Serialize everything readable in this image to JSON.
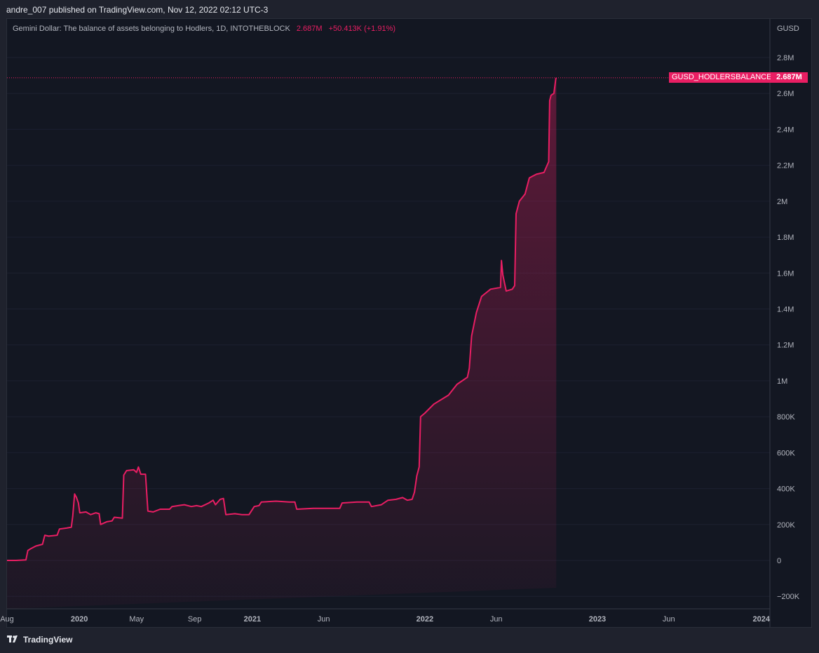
{
  "header": {
    "publisher_line": "andre_007 published on TradingView.com, Nov 12, 2022 02:12 UTC-3"
  },
  "legend": {
    "title": "Gemini Dollar: The balance of assets belonging to Hodlers, 1D, INTOTHEBLOCK",
    "last_value": "2.687M",
    "change": "+50.413K (+1.91%)"
  },
  "axis_currency": "GUSD",
  "last_label": "GUSD_HODLERSBALANCE",
  "last_price_label": "2.687M",
  "footer": {
    "brand": "TradingView"
  },
  "colors": {
    "line": "#e91e63",
    "background": "#131722",
    "axis_text": "#b2b5be"
  },
  "chart_data": {
    "type": "area",
    "title": "Gemini Dollar: The balance of assets belonging to Hodlers, 1D, INTOTHEBLOCK",
    "series": [
      {
        "name": "GUSD_HODLERSBALANCE"
      }
    ],
    "ylim": [
      -200000,
      2800000
    ],
    "xlim": [
      "2019-08-01",
      "2024-01-01"
    ],
    "y_ticks": [
      {
        "v": 2800000,
        "label": "2.8M"
      },
      {
        "v": 2600000,
        "label": "2.6M"
      },
      {
        "v": 2400000,
        "label": "2.4M"
      },
      {
        "v": 2200000,
        "label": "2.2M"
      },
      {
        "v": 2000000,
        "label": "2M"
      },
      {
        "v": 1800000,
        "label": "1.8M"
      },
      {
        "v": 1600000,
        "label": "1.6M"
      },
      {
        "v": 1400000,
        "label": "1.4M"
      },
      {
        "v": 1200000,
        "label": "1.2M"
      },
      {
        "v": 1000000,
        "label": "1M"
      },
      {
        "v": 800000,
        "label": "800K"
      },
      {
        "v": 600000,
        "label": "600K"
      },
      {
        "v": 400000,
        "label": "400K"
      },
      {
        "v": 200000,
        "label": "200K"
      },
      {
        "v": 0,
        "label": "0"
      },
      {
        "v": -200000,
        "label": "−200K"
      }
    ],
    "x_ticks": [
      {
        "date": "2019-08-01",
        "label": "Aug",
        "bold": false
      },
      {
        "date": "2020-01-01",
        "label": "2020",
        "bold": true
      },
      {
        "date": "2020-05-01",
        "label": "May",
        "bold": false
      },
      {
        "date": "2020-09-01",
        "label": "Sep",
        "bold": false
      },
      {
        "date": "2021-01-01",
        "label": "2021",
        "bold": true
      },
      {
        "date": "2021-06-01",
        "label": "Jun",
        "bold": false
      },
      {
        "date": "2022-01-01",
        "label": "2022",
        "bold": true
      },
      {
        "date": "2022-06-01",
        "label": "Jun",
        "bold": false
      },
      {
        "date": "2023-01-01",
        "label": "2023",
        "bold": true
      },
      {
        "date": "2023-06-01",
        "label": "Jun",
        "bold": false
      },
      {
        "date": "2024-01-01",
        "label": "2024",
        "bold": true
      }
    ],
    "points": [
      [
        "2019-08-01",
        0
      ],
      [
        "2019-08-20",
        0
      ],
      [
        "2019-09-10",
        3000
      ],
      [
        "2019-09-14",
        55000
      ],
      [
        "2019-09-20",
        65000
      ],
      [
        "2019-10-01",
        80000
      ],
      [
        "2019-10-15",
        90000
      ],
      [
        "2019-10-20",
        140000
      ],
      [
        "2019-10-28",
        135000
      ],
      [
        "2019-11-15",
        140000
      ],
      [
        "2019-11-20",
        175000
      ],
      [
        "2019-12-05",
        180000
      ],
      [
        "2019-12-15",
        185000
      ],
      [
        "2019-12-18",
        245000
      ],
      [
        "2019-12-22",
        370000
      ],
      [
        "2019-12-26",
        350000
      ],
      [
        "2019-12-30",
        320000
      ],
      [
        "2020-01-02",
        265000
      ],
      [
        "2020-01-15",
        270000
      ],
      [
        "2020-01-25",
        255000
      ],
      [
        "2020-02-05",
        265000
      ],
      [
        "2020-02-12",
        260000
      ],
      [
        "2020-02-15",
        200000
      ],
      [
        "2020-02-28",
        215000
      ],
      [
        "2020-03-10",
        220000
      ],
      [
        "2020-03-15",
        240000
      ],
      [
        "2020-04-01",
        235000
      ],
      [
        "2020-04-04",
        475000
      ],
      [
        "2020-04-10",
        500000
      ],
      [
        "2020-04-25",
        505000
      ],
      [
        "2020-05-01",
        490000
      ],
      [
        "2020-05-05",
        520000
      ],
      [
        "2020-05-10",
        480000
      ],
      [
        "2020-05-20",
        480000
      ],
      [
        "2020-05-25",
        275000
      ],
      [
        "2020-06-05",
        270000
      ],
      [
        "2020-06-20",
        285000
      ],
      [
        "2020-07-10",
        285000
      ],
      [
        "2020-07-15",
        300000
      ],
      [
        "2020-08-10",
        310000
      ],
      [
        "2020-08-25",
        300000
      ],
      [
        "2020-09-05",
        305000
      ],
      [
        "2020-09-15",
        300000
      ],
      [
        "2020-10-01",
        320000
      ],
      [
        "2020-10-10",
        335000
      ],
      [
        "2020-10-15",
        310000
      ],
      [
        "2020-10-25",
        340000
      ],
      [
        "2020-11-01",
        345000
      ],
      [
        "2020-11-06",
        255000
      ],
      [
        "2020-11-25",
        260000
      ],
      [
        "2020-12-10",
        255000
      ],
      [
        "2020-12-25",
        255000
      ],
      [
        "2021-01-05",
        300000
      ],
      [
        "2021-01-15",
        305000
      ],
      [
        "2021-01-20",
        325000
      ],
      [
        "2021-02-20",
        330000
      ],
      [
        "2021-03-20",
        325000
      ],
      [
        "2021-04-01",
        325000
      ],
      [
        "2021-04-05",
        285000
      ],
      [
        "2021-05-10",
        290000
      ],
      [
        "2021-06-10",
        290000
      ],
      [
        "2021-07-05",
        290000
      ],
      [
        "2021-07-10",
        320000
      ],
      [
        "2021-08-10",
        325000
      ],
      [
        "2021-09-05",
        325000
      ],
      [
        "2021-09-10",
        300000
      ],
      [
        "2021-10-01",
        310000
      ],
      [
        "2021-10-15",
        335000
      ],
      [
        "2021-11-01",
        340000
      ],
      [
        "2021-11-15",
        350000
      ],
      [
        "2021-11-25",
        335000
      ],
      [
        "2021-12-05",
        340000
      ],
      [
        "2021-12-10",
        380000
      ],
      [
        "2021-12-15",
        470000
      ],
      [
        "2021-12-20",
        520000
      ],
      [
        "2021-12-23",
        800000
      ],
      [
        "2022-01-01",
        820000
      ],
      [
        "2022-01-20",
        870000
      ],
      [
        "2022-02-20",
        920000
      ],
      [
        "2022-03-10",
        980000
      ],
      [
        "2022-04-01",
        1020000
      ],
      [
        "2022-04-05",
        1070000
      ],
      [
        "2022-04-10",
        1250000
      ],
      [
        "2022-04-20",
        1380000
      ],
      [
        "2022-05-01",
        1470000
      ],
      [
        "2022-05-20",
        1510000
      ],
      [
        "2022-06-10",
        1520000
      ],
      [
        "2022-06-12",
        1670000
      ],
      [
        "2022-06-15",
        1590000
      ],
      [
        "2022-06-22",
        1500000
      ],
      [
        "2022-07-05",
        1510000
      ],
      [
        "2022-07-10",
        1530000
      ],
      [
        "2022-07-13",
        1930000
      ],
      [
        "2022-07-20",
        2000000
      ],
      [
        "2022-08-01",
        2040000
      ],
      [
        "2022-08-10",
        2130000
      ],
      [
        "2022-08-25",
        2150000
      ],
      [
        "2022-09-10",
        2160000
      ],
      [
        "2022-09-20",
        2220000
      ],
      [
        "2022-09-22",
        2560000
      ],
      [
        "2022-09-25",
        2590000
      ],
      [
        "2022-10-01",
        2600000
      ],
      [
        "2022-10-05",
        2680000
      ],
      [
        "2022-10-06",
        2687000
      ]
    ]
  }
}
